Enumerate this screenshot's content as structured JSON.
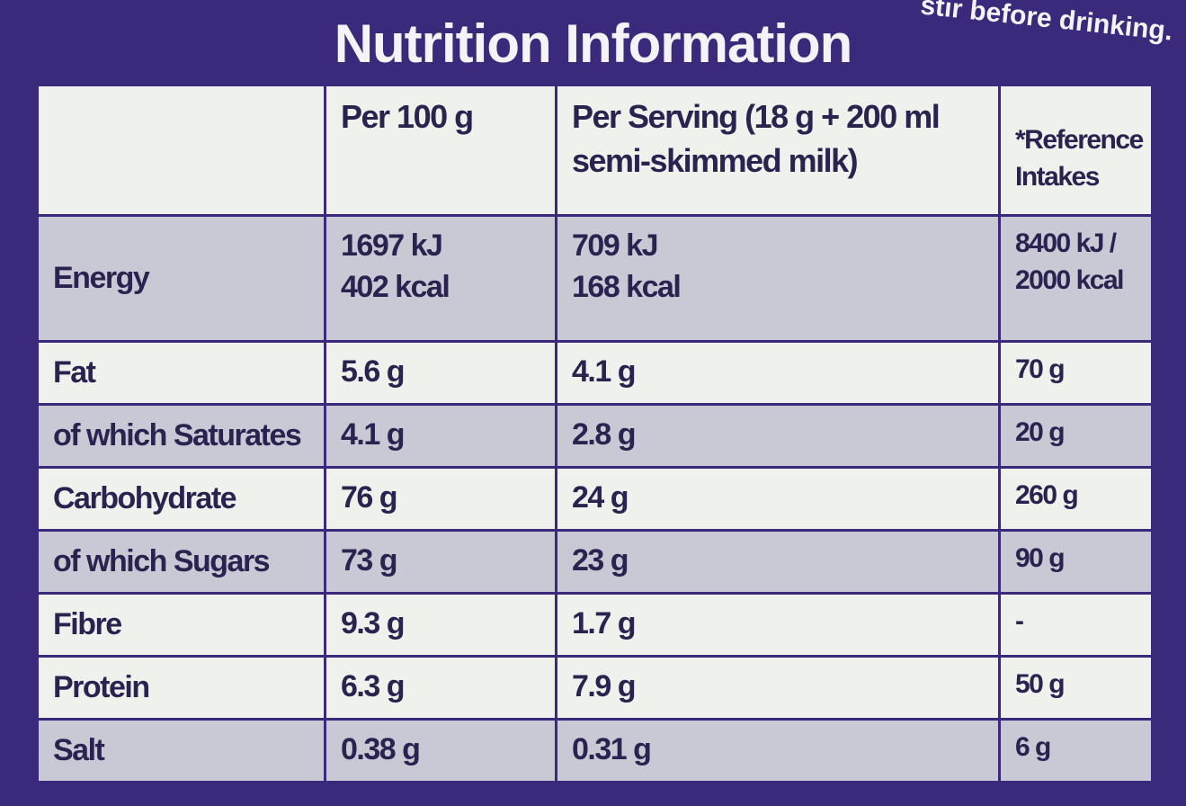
{
  "header": {
    "title": "Nutrition Information",
    "note": "stir before drinking."
  },
  "table": {
    "headers": [
      "Per 100 g",
      "Per Serving (18 g + 200 ml semi-skimmed milk)",
      "*Reference Intakes"
    ],
    "rows": [
      {
        "label": "Energy",
        "values": [
          [
            "1697 kJ",
            "402 kcal"
          ],
          [
            "709 kJ",
            "168 kcal"
          ],
          [
            "8400 kJ /",
            "2000 kcal"
          ]
        ]
      },
      {
        "label": "Fat",
        "values": [
          "5.6 g",
          "4.1 g",
          "70 g"
        ]
      },
      {
        "label": "of which Saturates",
        "values": [
          "4.1 g",
          "2.8 g",
          "20 g"
        ]
      },
      {
        "label": "Carbohydrate",
        "values": [
          "76 g",
          "24 g",
          "260 g"
        ]
      },
      {
        "label": "of which Sugars",
        "values": [
          "73 g",
          "23 g",
          "90 g"
        ]
      },
      {
        "label": "Fibre",
        "values": [
          "9.3 g",
          "1.7 g",
          "-"
        ]
      },
      {
        "label": "Protein",
        "values": [
          "6.3 g",
          "7.9 g",
          "50 g"
        ]
      },
      {
        "label": "Salt",
        "values": [
          "0.38 g",
          "0.31 g",
          "6 g"
        ]
      }
    ]
  }
}
